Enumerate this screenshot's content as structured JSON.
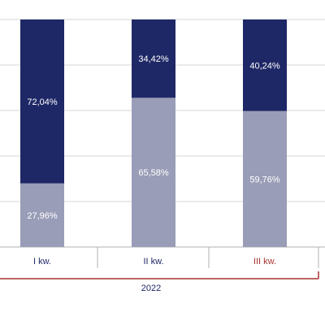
{
  "chart_data": {
    "type": "bar",
    "stacked": true,
    "percent": true,
    "categories": [
      "I kw.",
      "II kw.",
      "III kw."
    ],
    "group_label": "2022",
    "series": [
      {
        "values": [
          27.96,
          65.58,
          59.76
        ],
        "labels": [
          "27,96%",
          "65,58%",
          "59,76%"
        ]
      },
      {
        "values": [
          72.04,
          34.42,
          40.24
        ],
        "labels": [
          "72,04%",
          "34,42%",
          "40,24%"
        ]
      }
    ],
    "ylim": [
      0,
      100
    ],
    "grid": true,
    "colors": {
      "bottom": "#9a9db7",
      "top": "#1f2866",
      "grid": "#d6d6d6",
      "axis": "#b0b0b0",
      "bracket": "#a83232",
      "category_text": [
        "#1f2866",
        "#1f2866",
        "#a83232"
      ],
      "group_text": "#1f2866"
    }
  }
}
